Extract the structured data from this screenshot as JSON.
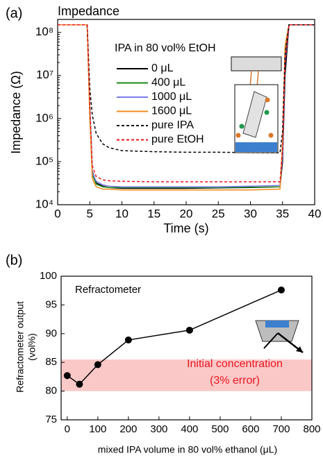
{
  "chart_data": [
    {
      "type": "line",
      "panel": "(a)",
      "title": "Impedance",
      "xlabel": "Time (s)",
      "ylabel": "Impedance (Ω)",
      "yscale": "log",
      "legend_title": "IPA in 80 vol% EtOH",
      "x": [
        0,
        4.6,
        5.0,
        5.4,
        6,
        7,
        8,
        10,
        15,
        20,
        25,
        30,
        34.6,
        35.0,
        35.4,
        36,
        40
      ],
      "series": [
        {
          "name": "0 μL",
          "color": "#000000",
          "dash": false,
          "values": [
            150000000.0,
            150000000.0,
            2000000.0,
            60000.0,
            32000.0,
            27000.0,
            25000.0,
            24000.0,
            24000.0,
            24000.0,
            24500.0,
            25000.0,
            26000.0,
            100000.0,
            10000000.0,
            150000000.0,
            150000000.0
          ]
        },
        {
          "name": "400 μL",
          "color": "#1a8a1a",
          "dash": false,
          "values": [
            150000000.0,
            150000000.0,
            1500000.0,
            50000.0,
            30000.0,
            26000.0,
            25000.0,
            25000.0,
            25000.0,
            25000.0,
            25000.0,
            25500.0,
            26000.0,
            200000.0,
            30000000.0,
            150000000.0,
            150000000.0
          ]
        },
        {
          "name": "1000 μL",
          "color": "#7a7aee",
          "dash": false,
          "values": [
            150000000.0,
            150000000.0,
            1800000.0,
            55000.0,
            35000.0,
            29000.0,
            27000.0,
            26000.0,
            26000.0,
            26000.0,
            26000.0,
            27000.0,
            28000.0,
            150000.0,
            20000000.0,
            150000000.0,
            150000000.0
          ]
        },
        {
          "name": "1600 μL",
          "color": "#f08a1c",
          "dash": false,
          "values": [
            150000000.0,
            150000000.0,
            1000000.0,
            40000.0,
            26000.0,
            23000.0,
            23000.0,
            22000.0,
            22000.0,
            22000.0,
            22000.0,
            22000.0,
            23000.0,
            300000.0,
            50000000.0,
            150000000.0,
            150000000.0
          ]
        },
        {
          "name": "pure IPA",
          "color": "#000000",
          "dash": true,
          "values": [
            150000000.0,
            150000000.0,
            5000000.0,
            1200000.0,
            450000.0,
            260000.0,
            210000.0,
            180000.0,
            170000.0,
            165000.0,
            165000.0,
            162000.0,
            160000.0,
            500000.0,
            30000000.0,
            150000000.0,
            150000000.0
          ]
        },
        {
          "name": "pure EtOH",
          "color": "#e8141e",
          "dash": true,
          "values": [
            150000000.0,
            150000000.0,
            2000000.0,
            80000.0,
            45000.0,
            38000.0,
            36000.0,
            35000.0,
            34000.0,
            34000.0,
            34000.0,
            34000.0,
            34000.0,
            200000.0,
            20000000.0,
            150000000.0,
            150000000.0
          ]
        }
      ],
      "xlim": [
        0,
        40
      ],
      "xticks": [
        0,
        5,
        10,
        15,
        20,
        25,
        30,
        35,
        40
      ],
      "ylim": [
        10000,
        200000000
      ],
      "yticks": [
        {
          "value": 10000,
          "label": "10⁴"
        },
        {
          "value": 100000,
          "label": "10⁵"
        },
        {
          "value": 1000000,
          "label": "10⁶"
        },
        {
          "value": 10000000,
          "label": "10⁷"
        },
        {
          "value": 100000000,
          "label": "10⁸"
        }
      ]
    },
    {
      "type": "line",
      "panel": "(b)",
      "title": "Refractometer",
      "xlabel": "mixed IPA volume in 80 vol% ethanol (μL)",
      "ylabel": [
        "Refractometer output",
        "(vol%)"
      ],
      "x": [
        0,
        40,
        100,
        200,
        400,
        700
      ],
      "values": [
        82.7,
        81.2,
        84.6,
        88.9,
        90.6,
        97.6
      ],
      "color": "#000000",
      "markers": true,
      "band": [
        80,
        85.5
      ],
      "band_color": "#fbc8c8",
      "annotation": [
        "Initial concentration",
        "(3% error)"
      ],
      "annotation_color": "#e8141e",
      "xlim": [
        -20,
        800
      ],
      "xticks": [
        0,
        100,
        200,
        300,
        400,
        500,
        600,
        700,
        800
      ],
      "ylim": [
        75,
        100
      ],
      "yticks": [
        75,
        80,
        85,
        90,
        95,
        100
      ]
    }
  ]
}
